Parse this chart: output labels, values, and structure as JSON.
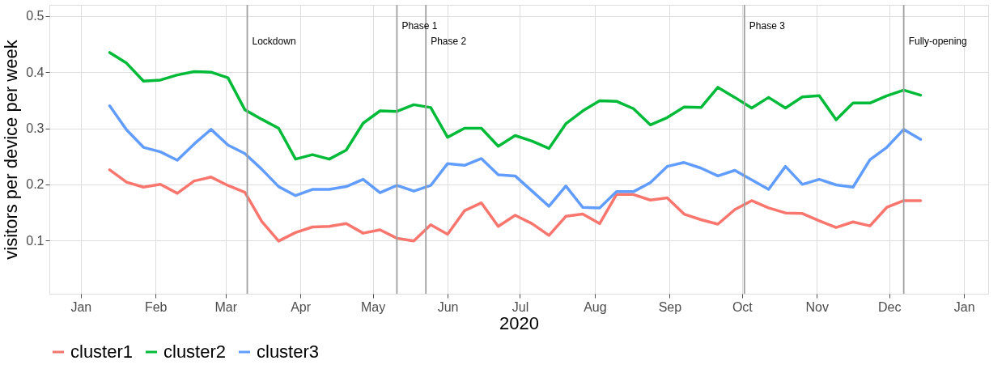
{
  "chart_data": {
    "type": "line",
    "xlabel": "2020",
    "ylabel": "visitors per device per week",
    "x": [
      "2020-01-13",
      "2020-01-20",
      "2020-01-27",
      "2020-02-03",
      "2020-02-10",
      "2020-02-17",
      "2020-02-24",
      "2020-03-02",
      "2020-03-09",
      "2020-03-16",
      "2020-03-23",
      "2020-03-30",
      "2020-04-06",
      "2020-04-13",
      "2020-04-20",
      "2020-04-27",
      "2020-05-04",
      "2020-05-11",
      "2020-05-18",
      "2020-05-25",
      "2020-06-01",
      "2020-06-08",
      "2020-06-15",
      "2020-06-22",
      "2020-06-29",
      "2020-07-06",
      "2020-07-13",
      "2020-07-20",
      "2020-07-27",
      "2020-08-03",
      "2020-08-10",
      "2020-08-17",
      "2020-08-24",
      "2020-08-31",
      "2020-09-07",
      "2020-09-14",
      "2020-09-21",
      "2020-09-28",
      "2020-10-05",
      "2020-10-12",
      "2020-10-19",
      "2020-10-26",
      "2020-11-02",
      "2020-11-09",
      "2020-11-16",
      "2020-11-23",
      "2020-11-30",
      "2020-12-07",
      "2020-12-14"
    ],
    "series": [
      {
        "name": "cluster1",
        "color": "#f8766d",
        "values": [
          0.226,
          0.204,
          0.195,
          0.2,
          0.184,
          0.206,
          0.213,
          0.198,
          0.186,
          0.134,
          0.099,
          0.114,
          0.124,
          0.125,
          0.13,
          0.113,
          0.119,
          0.104,
          0.099,
          0.128,
          0.111,
          0.153,
          0.167,
          0.125,
          0.145,
          0.13,
          0.109,
          0.143,
          0.147,
          0.13,
          0.182,
          0.182,
          0.172,
          0.176,
          0.147,
          0.137,
          0.129,
          0.155,
          0.171,
          0.158,
          0.149,
          0.148,
          0.135,
          0.123,
          0.133,
          0.126,
          0.159,
          0.171,
          0.171
        ]
      },
      {
        "name": "cluster2",
        "color": "#00ba38",
        "values": [
          0.435,
          0.416,
          0.384,
          0.386,
          0.395,
          0.401,
          0.4,
          0.39,
          0.333,
          0.316,
          0.3,
          0.245,
          0.253,
          0.245,
          0.261,
          0.309,
          0.331,
          0.33,
          0.342,
          0.337,
          0.284,
          0.3,
          0.3,
          0.268,
          0.287,
          0.277,
          0.264,
          0.308,
          0.331,
          0.349,
          0.348,
          0.335,
          0.306,
          0.319,
          0.338,
          0.337,
          0.373,
          0.355,
          0.336,
          0.355,
          0.336,
          0.356,
          0.358,
          0.315,
          0.345,
          0.345,
          0.358,
          0.368,
          0.359
        ]
      },
      {
        "name": "cluster3",
        "color": "#619cff",
        "values": [
          0.34,
          0.297,
          0.266,
          0.258,
          0.243,
          0.272,
          0.298,
          0.27,
          0.255,
          0.227,
          0.196,
          0.18,
          0.191,
          0.191,
          0.196,
          0.209,
          0.185,
          0.198,
          0.188,
          0.198,
          0.237,
          0.234,
          0.246,
          0.217,
          0.215,
          0.188,
          0.161,
          0.197,
          0.159,
          0.158,
          0.187,
          0.187,
          0.203,
          0.232,
          0.239,
          0.229,
          0.215,
          0.225,
          0.208,
          0.191,
          0.232,
          0.2,
          0.209,
          0.199,
          0.195,
          0.244,
          0.266,
          0.298,
          0.28
        ]
      }
    ],
    "xlim": [
      "2019-12-19",
      "2021-01-11"
    ],
    "xticks": [
      {
        "value": "2020-01-01",
        "label": "Jan"
      },
      {
        "value": "2020-02-01",
        "label": "Feb"
      },
      {
        "value": "2020-03-01",
        "label": "Mar"
      },
      {
        "value": "2020-04-01",
        "label": "Apr"
      },
      {
        "value": "2020-05-01",
        "label": "May"
      },
      {
        "value": "2020-06-01",
        "label": "Jun"
      },
      {
        "value": "2020-07-01",
        "label": "Jul"
      },
      {
        "value": "2020-08-01",
        "label": "Aug"
      },
      {
        "value": "2020-09-01",
        "label": "Sep"
      },
      {
        "value": "2020-10-01",
        "label": "Oct"
      },
      {
        "value": "2020-11-01",
        "label": "Nov"
      },
      {
        "value": "2020-12-01",
        "label": "Dec"
      },
      {
        "value": "2021-01-01",
        "label": "Jan"
      }
    ],
    "ylim": [
      0.005,
      0.52
    ],
    "yticks": [
      0.1,
      0.2,
      0.3,
      0.4,
      0.5
    ],
    "ref_lines": [
      {
        "axis": "x",
        "value": "2020-03-10",
        "label": "Lockdown",
        "color": "#a0a0a0"
      },
      {
        "axis": "x",
        "value": "2020-05-11",
        "label": "Phase 1",
        "color": "#a0a0a0"
      },
      {
        "axis": "x",
        "value": "2020-05-23",
        "label": "Phase 2",
        "color": "#a0a0a0"
      },
      {
        "axis": "x",
        "value": "2020-10-02",
        "label": "Phase 3",
        "color": "#a0a0a0"
      },
      {
        "axis": "x",
        "value": "2020-12-07",
        "label": "Fully-opening",
        "color": "#a0a0a0"
      }
    ],
    "grid": true,
    "legend": "bottom",
    "marker": "none",
    "line_style": "solid"
  }
}
